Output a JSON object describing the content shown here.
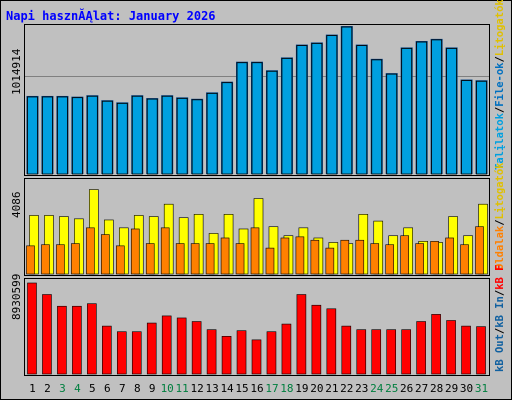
{
  "title": "Napi hasznĂĄlat: January 2026",
  "colors": {
    "frame_bg": "#c0c0c0",
    "title": "#0000ff",
    "grid": "#808080",
    "files": "#00a0e0",
    "pages_in": "#ffff00",
    "pages_out": "#ff8000",
    "kb_in": "#ff0000",
    "weekend_label": "#007f3f",
    "weekday_label": "#000000"
  },
  "right_axis": {
    "top_labels": [
      {
        "text": "Talįlatok",
        "color": "#00a0e0"
      },
      {
        "text": "/",
        "color": "#000000"
      },
      {
        "text": "File-ok",
        "color": "#0070c0"
      },
      {
        "text": "/",
        "color": "#000000"
      },
      {
        "text": "Lįtogatók",
        "color": "#e0c000"
      }
    ],
    "middle_labels": [
      {
        "text": "Oldalak",
        "color": "#ff8000"
      },
      {
        "text": "/",
        "color": "#000000"
      },
      {
        "text": "Lįtogatók",
        "color": "#e0c000"
      }
    ],
    "bottom_labels": [
      {
        "text": "kB Out",
        "color": "#1060a0"
      },
      {
        "text": "/",
        "color": "#000000"
      },
      {
        "text": "kB In",
        "color": "#1060a0"
      },
      {
        "text": "/",
        "color": "#000000"
      },
      {
        "text": "kB F",
        "color": "#ff0000"
      }
    ]
  },
  "chart_data": {
    "type": "bar",
    "title": "Napi hasznĂĄlat: January 2026",
    "days": [
      "1",
      "2",
      "3",
      "4",
      "5",
      "6",
      "7",
      "8",
      "9",
      "10",
      "11",
      "12",
      "13",
      "14",
      "15",
      "16",
      "17",
      "18",
      "19",
      "20",
      "21",
      "22",
      "23",
      "24",
      "25",
      "26",
      "27",
      "28",
      "29",
      "30",
      "31"
    ],
    "weekend_days": [
      "3",
      "4",
      "10",
      "11",
      "17",
      "18",
      "24",
      "25",
      "31"
    ],
    "panels": [
      {
        "name": "hits",
        "ymax_label": "1014914",
        "ymax": 1014914,
        "series": [
          {
            "name": "hits",
            "values": [
              540000,
              540000,
              540000,
              535000,
              545000,
              510000,
              495000,
              545000,
              525000,
              545000,
              530000,
              520000,
              565000,
              640000,
              780000,
              780000,
              720000,
              810000,
              900000,
              915000,
              970000,
              1030000,
              900000,
              800000,
              700000,
              880000,
              925000,
              940000,
              880000,
              655000,
              650000
            ]
          },
          {
            "name": "files",
            "values": [
              540000,
              540000,
              540000,
              535000,
              545000,
              510000,
              495000,
              545000,
              525000,
              545000,
              530000,
              520000,
              565000,
              640000,
              780000,
              780000,
              720000,
              810000,
              900000,
              915000,
              970000,
              1030000,
              900000,
              800000,
              700000,
              880000,
              925000,
              940000,
              880000,
              655000,
              650000
            ]
          }
        ]
      },
      {
        "name": "visits",
        "ymax_label": "4086",
        "ymax": 4086,
        "series": [
          {
            "name": "visits",
            "values": [
              2600,
              2600,
              2550,
              2450,
              3750,
              2400,
              2050,
              2600,
              2550,
              3100,
              2500,
              2650,
              1800,
              2650,
              2000,
              3350,
              2100,
              1700,
              2050,
              1600,
              1400,
              1350,
              2650,
              2350,
              1700,
              2050,
              1450,
              1400,
              2550,
              1700,
              3100
            ]
          },
          {
            "name": "pages",
            "values": [
              1250,
              1300,
              1300,
              1350,
              2050,
              1750,
              1250,
              2000,
              1350,
              2050,
              1350,
              1350,
              1350,
              1600,
              1350,
              2050,
              1150,
              1600,
              1650,
              1500,
              1150,
              1500,
              1500,
              1350,
              1300,
              1700,
              1350,
              1450,
              1600,
              1300,
              2100
            ]
          }
        ]
      },
      {
        "name": "kb",
        "ymax_label": "8930599",
        "ymax": 8930599,
        "series": [
          {
            "name": "kb",
            "values": [
              8930599,
              7800000,
              6650000,
              6650000,
              6900000,
              4700000,
              4150000,
              4150000,
              5000000,
              5700000,
              5500000,
              5150000,
              4350000,
              3700000,
              4250000,
              3350000,
              4150000,
              4900000,
              7800000,
              6750000,
              6400000,
              4700000,
              4350000,
              4350000,
              4350000,
              4350000,
              5150000,
              5850000,
              5250000,
              4700000,
              4650000
            ]
          }
        ]
      }
    ]
  }
}
